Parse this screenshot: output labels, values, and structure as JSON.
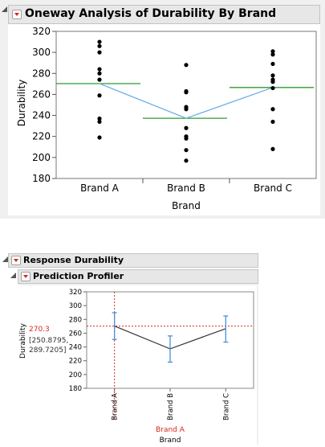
{
  "oneway": {
    "title": "Oneway Analysis of Durability By Brand"
  },
  "response": {
    "title": "Response Durability"
  },
  "profiler": {
    "title": "Prediction Profiler",
    "y_value": "270.3",
    "y_interval": "[250.8795,",
    "y_interval_2": "289.7205]",
    "current_x": "Brand A"
  },
  "colors": {
    "accent_red": "#d9261c",
    "mean_line": "#2e9b2e",
    "connect_line": "#6aaee8",
    "profile_line": "#333333",
    "error_bar": "#4a90d9",
    "crosshair": "#d9261c"
  },
  "chart_data": [
    {
      "type": "scatter",
      "title": "Oneway Analysis of Durability By Brand",
      "xlabel": "Brand",
      "ylabel": "Durability",
      "categories": [
        "Brand A",
        "Brand B",
        "Brand C"
      ],
      "ylim": [
        180,
        320
      ],
      "yticks": [
        180,
        200,
        220,
        240,
        260,
        280,
        300,
        320
      ],
      "points": {
        "Brand A": [
          310,
          306,
          300,
          284,
          280,
          274,
          259,
          237,
          234,
          219
        ],
        "Brand B": [
          288,
          263,
          262,
          248,
          246,
          228,
          220,
          218,
          207,
          197
        ],
        "Brand C": [
          301,
          298,
          289,
          278,
          274,
          272,
          266,
          246,
          234,
          208
        ]
      },
      "means": [
        270.3,
        237.3,
        266.6
      ],
      "grid": false
    },
    {
      "type": "line",
      "title": "Prediction Profiler",
      "xlabel": "Brand",
      "ylabel": "Durability",
      "categories": [
        "Brand A",
        "Brand B",
        "Brand C"
      ],
      "ylim": [
        180,
        320
      ],
      "yticks": [
        180,
        200,
        220,
        240,
        260,
        280,
        300,
        320
      ],
      "values": [
        270.3,
        237.3,
        266.6
      ],
      "lower": [
        250.8795,
        218.0,
        247.0
      ],
      "upper": [
        289.7205,
        256.0,
        285.0
      ],
      "current_value": 270.3,
      "current_category": "Brand A",
      "grid": false
    }
  ]
}
